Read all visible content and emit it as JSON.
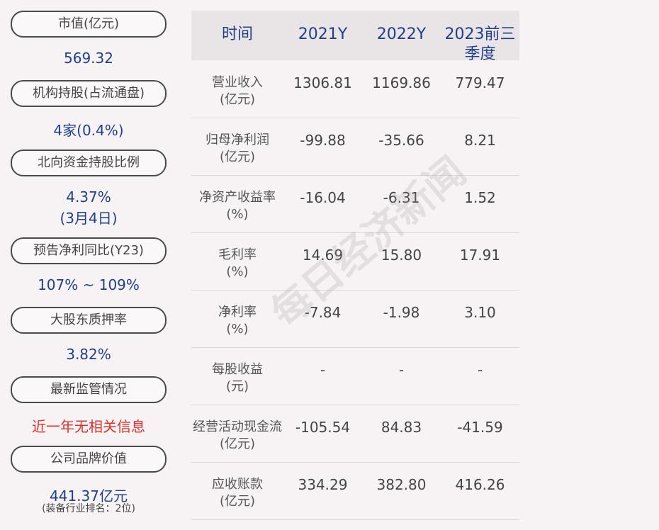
{
  "left": [
    {
      "label": "市值(亿元)",
      "value": "569.32"
    },
    {
      "label": "机构持股(占流通盘)",
      "value": "4家(0.4%)"
    },
    {
      "label": "北向资金持股比例",
      "value": "4.37%",
      "value2": "(3月4日)"
    },
    {
      "label": "预告净利同比(Y23)",
      "value": "107% ~ 109%"
    },
    {
      "label": "大股东质押率",
      "value": "3.82%"
    },
    {
      "label": "最新监管情况",
      "value": "近一年无相关信息"
    },
    {
      "label": "公司品牌价值",
      "value": "441.37亿元",
      "sub": "(装备行业排名：2位)"
    }
  ],
  "table": {
    "headers": [
      "时间",
      "2021Y",
      "2022Y",
      "2023前三",
      "季度"
    ],
    "rows": [
      {
        "l1": "营业收入",
        "l2": "(亿元)",
        "v": [
          "1306.81",
          "1169.86",
          "779.47"
        ]
      },
      {
        "l1": "归母净利润",
        "l2": "(亿元)",
        "v": [
          "-99.88",
          "-35.66",
          "8.21"
        ]
      },
      {
        "l1": "净资产收益率",
        "l2": "(%)",
        "v": [
          "-16.04",
          "-6.31",
          "1.52"
        ]
      },
      {
        "l1": "毛利率",
        "l2": "(%)",
        "v": [
          "14.69",
          "15.80",
          "17.91"
        ]
      },
      {
        "l1": "净利率",
        "l2": "(%)",
        "v": [
          "-7.84",
          "-1.98",
          "3.10"
        ]
      },
      {
        "l1": "每股收益",
        "l2": "(元)",
        "v": [
          "-",
          "-",
          "-"
        ]
      },
      {
        "l1": "经营活动现金流",
        "l2": "(亿元)",
        "v": [
          "-105.54",
          "84.83",
          "-41.59"
        ]
      },
      {
        "l1": "应收账款",
        "l2": "(亿元)",
        "v": [
          "334.29",
          "382.80",
          "416.26"
        ]
      }
    ]
  },
  "watermark": "每日经济新闻"
}
